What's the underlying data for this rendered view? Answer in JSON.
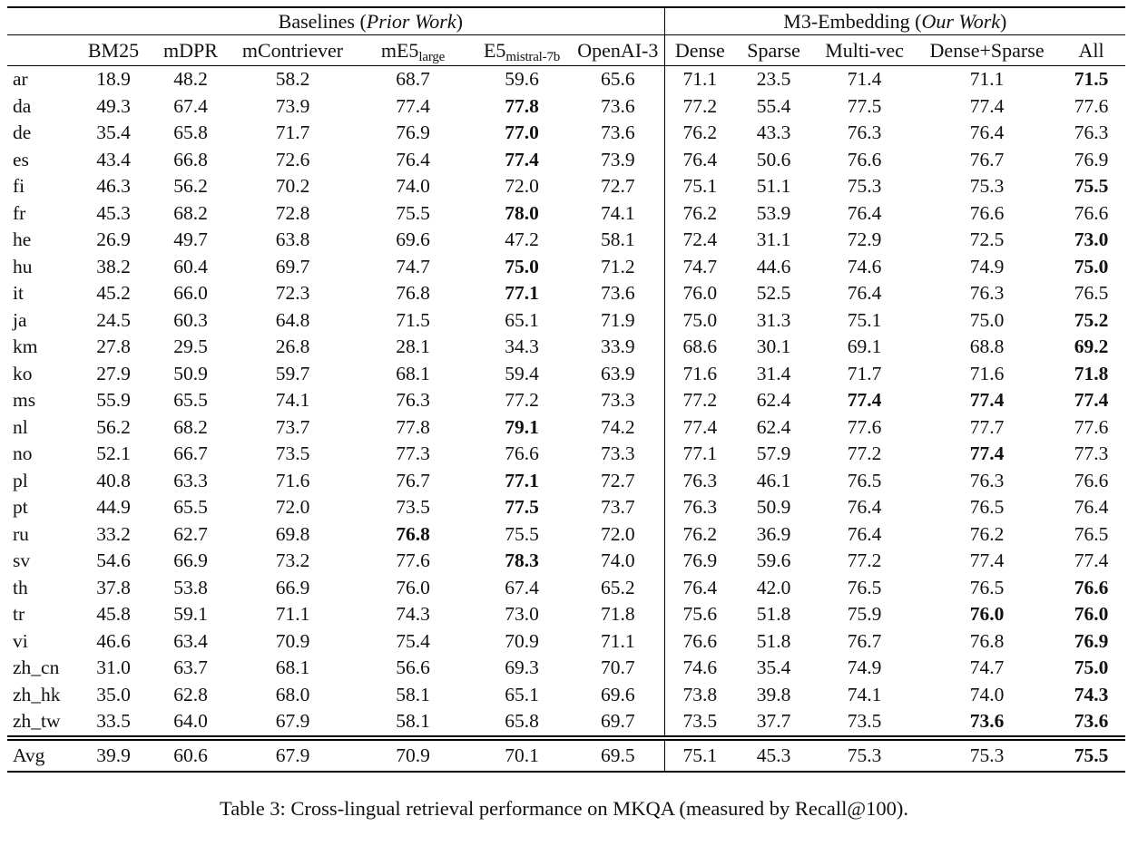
{
  "caption": "Table 3: Cross-lingual retrieval performance on MKQA (measured by Recall@100).",
  "table": {
    "groups": [
      {
        "prefix": "Baselines (",
        "italic": "Prior Work",
        "suffix": ")"
      },
      {
        "prefix": "M3-Embedding (",
        "italic": "Our Work",
        "suffix": ")"
      }
    ],
    "columns": [
      {
        "text": "BM25"
      },
      {
        "text": "mDPR"
      },
      {
        "text": "mContriever"
      },
      {
        "text": "mE5",
        "sub": "large"
      },
      {
        "text": "E5",
        "sub": "mistral-7b"
      },
      {
        "text": "OpenAI-3"
      },
      {
        "text": "Dense"
      },
      {
        "text": "Sparse"
      },
      {
        "text": "Multi-vec"
      },
      {
        "text": "Dense+Sparse"
      },
      {
        "text": "All"
      }
    ],
    "rows": [
      {
        "lang": "ar",
        "values": [
          "18.9",
          "48.2",
          "58.2",
          "68.7",
          "59.6",
          "65.6",
          "71.1",
          "23.5",
          "71.4",
          "71.1",
          "71.5"
        ],
        "bold": [
          10
        ]
      },
      {
        "lang": "da",
        "values": [
          "49.3",
          "67.4",
          "73.9",
          "77.4",
          "77.8",
          "73.6",
          "77.2",
          "55.4",
          "77.5",
          "77.4",
          "77.6"
        ],
        "bold": [
          4
        ]
      },
      {
        "lang": "de",
        "values": [
          "35.4",
          "65.8",
          "71.7",
          "76.9",
          "77.0",
          "73.6",
          "76.2",
          "43.3",
          "76.3",
          "76.4",
          "76.3"
        ],
        "bold": [
          4
        ]
      },
      {
        "lang": "es",
        "values": [
          "43.4",
          "66.8",
          "72.6",
          "76.4",
          "77.4",
          "73.9",
          "76.4",
          "50.6",
          "76.6",
          "76.7",
          "76.9"
        ],
        "bold": [
          4
        ]
      },
      {
        "lang": "fi",
        "values": [
          "46.3",
          "56.2",
          "70.2",
          "74.0",
          "72.0",
          "72.7",
          "75.1",
          "51.1",
          "75.3",
          "75.3",
          "75.5"
        ],
        "bold": [
          10
        ]
      },
      {
        "lang": "fr",
        "values": [
          "45.3",
          "68.2",
          "72.8",
          "75.5",
          "78.0",
          "74.1",
          "76.2",
          "53.9",
          "76.4",
          "76.6",
          "76.6"
        ],
        "bold": [
          4
        ]
      },
      {
        "lang": "he",
        "values": [
          "26.9",
          "49.7",
          "63.8",
          "69.6",
          "47.2",
          "58.1",
          "72.4",
          "31.1",
          "72.9",
          "72.5",
          "73.0"
        ],
        "bold": [
          10
        ]
      },
      {
        "lang": "hu",
        "values": [
          "38.2",
          "60.4",
          "69.7",
          "74.7",
          "75.0",
          "71.2",
          "74.7",
          "44.6",
          "74.6",
          "74.9",
          "75.0"
        ],
        "bold": [
          4,
          10
        ]
      },
      {
        "lang": "it",
        "values": [
          "45.2",
          "66.0",
          "72.3",
          "76.8",
          "77.1",
          "73.6",
          "76.0",
          "52.5",
          "76.4",
          "76.3",
          "76.5"
        ],
        "bold": [
          4
        ]
      },
      {
        "lang": "ja",
        "values": [
          "24.5",
          "60.3",
          "64.8",
          "71.5",
          "65.1",
          "71.9",
          "75.0",
          "31.3",
          "75.1",
          "75.0",
          "75.2"
        ],
        "bold": [
          10
        ]
      },
      {
        "lang": "km",
        "values": [
          "27.8",
          "29.5",
          "26.8",
          "28.1",
          "34.3",
          "33.9",
          "68.6",
          "30.1",
          "69.1",
          "68.8",
          "69.2"
        ],
        "bold": [
          10
        ]
      },
      {
        "lang": "ko",
        "values": [
          "27.9",
          "50.9",
          "59.7",
          "68.1",
          "59.4",
          "63.9",
          "71.6",
          "31.4",
          "71.7",
          "71.6",
          "71.8"
        ],
        "bold": [
          10
        ]
      },
      {
        "lang": "ms",
        "values": [
          "55.9",
          "65.5",
          "74.1",
          "76.3",
          "77.2",
          "73.3",
          "77.2",
          "62.4",
          "77.4",
          "77.4",
          "77.4"
        ],
        "bold": [
          8,
          9,
          10
        ]
      },
      {
        "lang": "nl",
        "values": [
          "56.2",
          "68.2",
          "73.7",
          "77.8",
          "79.1",
          "74.2",
          "77.4",
          "62.4",
          "77.6",
          "77.7",
          "77.6"
        ],
        "bold": [
          4
        ]
      },
      {
        "lang": "no",
        "values": [
          "52.1",
          "66.7",
          "73.5",
          "77.3",
          "76.6",
          "73.3",
          "77.1",
          "57.9",
          "77.2",
          "77.4",
          "77.3"
        ],
        "bold": [
          9
        ]
      },
      {
        "lang": "pl",
        "values": [
          "40.8",
          "63.3",
          "71.6",
          "76.7",
          "77.1",
          "72.7",
          "76.3",
          "46.1",
          "76.5",
          "76.3",
          "76.6"
        ],
        "bold": [
          4
        ]
      },
      {
        "lang": "pt",
        "values": [
          "44.9",
          "65.5",
          "72.0",
          "73.5",
          "77.5",
          "73.7",
          "76.3",
          "50.9",
          "76.4",
          "76.5",
          "76.4"
        ],
        "bold": [
          4
        ]
      },
      {
        "lang": "ru",
        "values": [
          "33.2",
          "62.7",
          "69.8",
          "76.8",
          "75.5",
          "72.0",
          "76.2",
          "36.9",
          "76.4",
          "76.2",
          "76.5"
        ],
        "bold": [
          3
        ]
      },
      {
        "lang": "sv",
        "values": [
          "54.6",
          "66.9",
          "73.2",
          "77.6",
          "78.3",
          "74.0",
          "76.9",
          "59.6",
          "77.2",
          "77.4",
          "77.4"
        ],
        "bold": [
          4
        ]
      },
      {
        "lang": "th",
        "values": [
          "37.8",
          "53.8",
          "66.9",
          "76.0",
          "67.4",
          "65.2",
          "76.4",
          "42.0",
          "76.5",
          "76.5",
          "76.6"
        ],
        "bold": [
          10
        ]
      },
      {
        "lang": "tr",
        "values": [
          "45.8",
          "59.1",
          "71.1",
          "74.3",
          "73.0",
          "71.8",
          "75.6",
          "51.8",
          "75.9",
          "76.0",
          "76.0"
        ],
        "bold": [
          9,
          10
        ]
      },
      {
        "lang": "vi",
        "values": [
          "46.6",
          "63.4",
          "70.9",
          "75.4",
          "70.9",
          "71.1",
          "76.6",
          "51.8",
          "76.7",
          "76.8",
          "76.9"
        ],
        "bold": [
          10
        ]
      },
      {
        "lang": "zh_cn",
        "values": [
          "31.0",
          "63.7",
          "68.1",
          "56.6",
          "69.3",
          "70.7",
          "74.6",
          "35.4",
          "74.9",
          "74.7",
          "75.0"
        ],
        "bold": [
          10
        ]
      },
      {
        "lang": "zh_hk",
        "values": [
          "35.0",
          "62.8",
          "68.0",
          "58.1",
          "65.1",
          "69.6",
          "73.8",
          "39.8",
          "74.1",
          "74.0",
          "74.3"
        ],
        "bold": [
          10
        ]
      },
      {
        "lang": "zh_tw",
        "values": [
          "33.5",
          "64.0",
          "67.9",
          "58.1",
          "65.8",
          "69.7",
          "73.5",
          "37.7",
          "73.5",
          "73.6",
          "73.6"
        ],
        "bold": [
          9,
          10
        ]
      }
    ],
    "avg": {
      "label": "Avg",
      "values": [
        "39.9",
        "60.6",
        "67.9",
        "70.9",
        "70.1",
        "69.5",
        "75.1",
        "45.3",
        "75.3",
        "75.3",
        "75.5"
      ],
      "bold": [
        10
      ]
    }
  }
}
